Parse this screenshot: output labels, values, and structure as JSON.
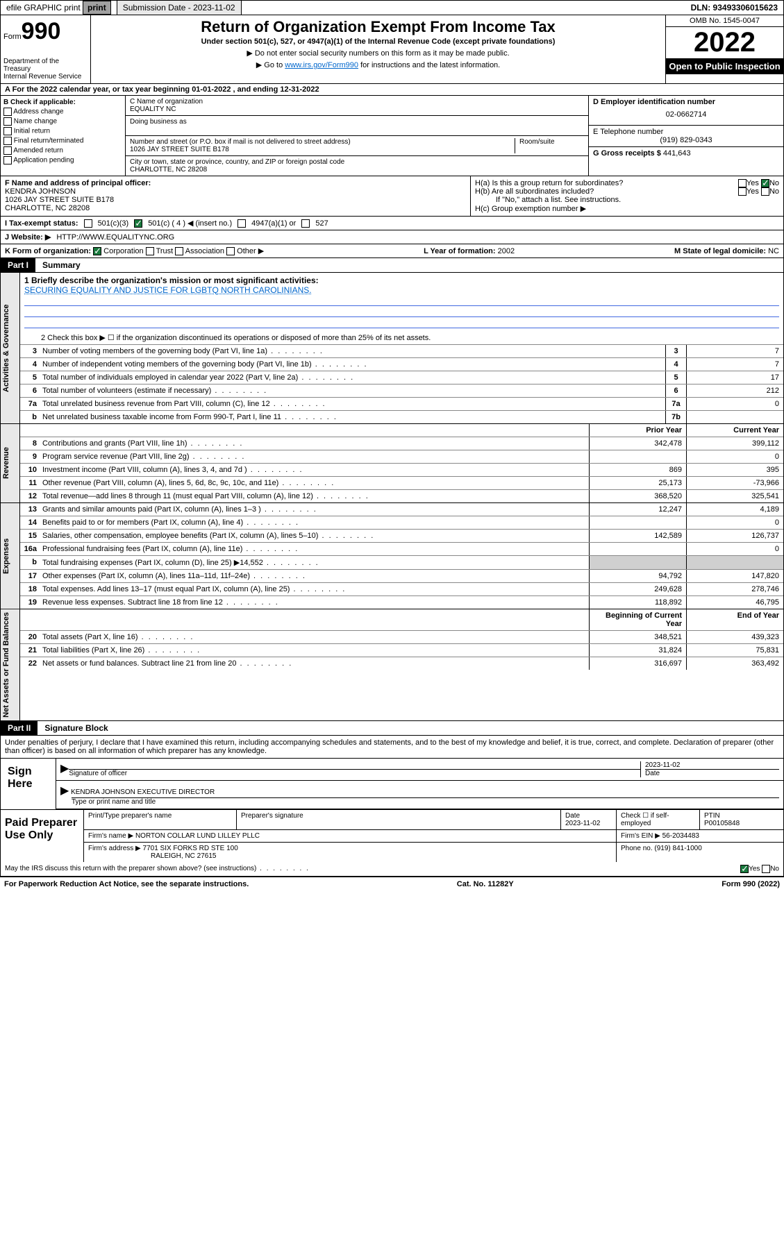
{
  "topbar": {
    "efile": "efile GRAPHIC print",
    "submission_label": "Submission Date - 2023-11-02",
    "dln": "DLN: 93493306015623"
  },
  "header": {
    "form_label": "Form",
    "form_num": "990",
    "main_title": "Return of Organization Exempt From Income Tax",
    "subtitle": "Under section 501(c), 527, or 4947(a)(1) of the Internal Revenue Code (except private foundations)",
    "note1": "▶ Do not enter social security numbers on this form as it may be made public.",
    "note2_pre": "▶ Go to ",
    "note2_link": "www.irs.gov/Form990",
    "note2_post": " for instructions and the latest information.",
    "dept": "Department of the Treasury\nInternal Revenue Service",
    "omb": "OMB No. 1545-0047",
    "year": "2022",
    "open_public": "Open to Public Inspection"
  },
  "section_a": "A For the 2022 calendar year, or tax year beginning 01-01-2022   , and ending 12-31-2022",
  "col_b": {
    "label": "B Check if applicable:",
    "opts": [
      "Address change",
      "Name change",
      "Initial return",
      "Final return/terminated",
      "Amended return",
      "Application pending"
    ]
  },
  "col_c": {
    "name_label": "C Name of organization",
    "name": "EQUALITY NC",
    "dba": "Doing business as",
    "addr_label": "Number and street (or P.O. box if mail is not delivered to street address)",
    "room": "Room/suite",
    "addr": "1026 JAY STREET SUITE B178",
    "city_label": "City or town, state or province, country, and ZIP or foreign postal code",
    "city": "CHARLOTTE, NC  28208"
  },
  "col_de": {
    "d_label": "D Employer identification number",
    "ein": "02-0662714",
    "e_label": "E Telephone number",
    "phone": "(919) 829-0343",
    "g_label": "G Gross receipts $",
    "gross": "441,643"
  },
  "row_f": {
    "label": "F  Name and address of principal officer:",
    "name": "KENDRA JOHNSON",
    "addr1": "1026 JAY STREET SUITE B178",
    "addr2": "CHARLOTTE, NC  28208"
  },
  "row_h": {
    "ha": "H(a)  Is this a group return for subordinates?",
    "hb": "H(b)  Are all subordinates included?",
    "hb_note": "If \"No,\" attach a list. See instructions.",
    "hc": "H(c)  Group exemption number ▶"
  },
  "row_i": {
    "label": "I  Tax-exempt status:",
    "opts": [
      "501(c)(3)",
      "501(c) ( 4 ) ◀ (insert no.)",
      "4947(a)(1) or",
      "527"
    ]
  },
  "row_j": {
    "label": "J  Website: ▶",
    "val": "HTTP://WWW.EQUALITYNC.ORG"
  },
  "row_k": {
    "label": "K Form of organization:",
    "opts": [
      "Corporation",
      "Trust",
      "Association",
      "Other ▶"
    ]
  },
  "row_l": {
    "label": "L Year of formation:",
    "val": "2002"
  },
  "row_m": {
    "label": "M State of legal domicile:",
    "val": "NC"
  },
  "parts": {
    "p1_label": "Part I",
    "p1_name": "Summary",
    "p2_label": "Part II",
    "p2_name": "Signature Block"
  },
  "vtabs": {
    "gov": "Activities & Governance",
    "rev": "Revenue",
    "exp": "Expenses",
    "net": "Net Assets or Fund Balances"
  },
  "mission_label": "1  Briefly describe the organization's mission or most significant activities:",
  "mission": "SECURING EQUALITY AND JUSTICE FOR LGBTQ NORTH CAROLINIANS.",
  "line2": "2 Check this box ▶ ☐  if the organization discontinued its operations or disposed of more than 25% of its net assets.",
  "gov_lines": [
    {
      "n": "3",
      "d": "Number of voting members of the governing body (Part VI, line 1a)",
      "box": "3",
      "v": "7"
    },
    {
      "n": "4",
      "d": "Number of independent voting members of the governing body (Part VI, line 1b)",
      "box": "4",
      "v": "7"
    },
    {
      "n": "5",
      "d": "Total number of individuals employed in calendar year 2022 (Part V, line 2a)",
      "box": "5",
      "v": "17"
    },
    {
      "n": "6",
      "d": "Total number of volunteers (estimate if necessary)",
      "box": "6",
      "v": "212"
    },
    {
      "n": "7a",
      "d": "Total unrelated business revenue from Part VIII, column (C), line 12",
      "box": "7a",
      "v": "0"
    },
    {
      "n": "b",
      "d": "Net unrelated business taxable income from Form 990-T, Part I, line 11",
      "box": "7b",
      "v": ""
    }
  ],
  "col_headers": {
    "prior": "Prior Year",
    "current": "Current Year",
    "beg": "Beginning of Current Year",
    "end": "End of Year"
  },
  "rev_lines": [
    {
      "n": "8",
      "d": "Contributions and grants (Part VIII, line 1h)",
      "p": "342,478",
      "c": "399,112"
    },
    {
      "n": "9",
      "d": "Program service revenue (Part VIII, line 2g)",
      "p": "",
      "c": "0"
    },
    {
      "n": "10",
      "d": "Investment income (Part VIII, column (A), lines 3, 4, and 7d )",
      "p": "869",
      "c": "395"
    },
    {
      "n": "11",
      "d": "Other revenue (Part VIII, column (A), lines 5, 6d, 8c, 9c, 10c, and 11e)",
      "p": "25,173",
      "c": "-73,966"
    },
    {
      "n": "12",
      "d": "Total revenue—add lines 8 through 11 (must equal Part VIII, column (A), line 12)",
      "p": "368,520",
      "c": "325,541"
    }
  ],
  "exp_lines": [
    {
      "n": "13",
      "d": "Grants and similar amounts paid (Part IX, column (A), lines 1–3 )",
      "p": "12,247",
      "c": "4,189"
    },
    {
      "n": "14",
      "d": "Benefits paid to or for members (Part IX, column (A), line 4)",
      "p": "",
      "c": "0"
    },
    {
      "n": "15",
      "d": "Salaries, other compensation, employee benefits (Part IX, column (A), lines 5–10)",
      "p": "142,589",
      "c": "126,737"
    },
    {
      "n": "16a",
      "d": "Professional fundraising fees (Part IX, column (A), line 11e)",
      "p": "",
      "c": "0"
    },
    {
      "n": "b",
      "d": "Total fundraising expenses (Part IX, column (D), line 25) ▶14,552",
      "p": "shaded",
      "c": "shaded"
    },
    {
      "n": "17",
      "d": "Other expenses (Part IX, column (A), lines 11a–11d, 11f–24e)",
      "p": "94,792",
      "c": "147,820"
    },
    {
      "n": "18",
      "d": "Total expenses. Add lines 13–17 (must equal Part IX, column (A), line 25)",
      "p": "249,628",
      "c": "278,746"
    },
    {
      "n": "19",
      "d": "Revenue less expenses. Subtract line 18 from line 12",
      "p": "118,892",
      "c": "46,795"
    }
  ],
  "net_lines": [
    {
      "n": "20",
      "d": "Total assets (Part X, line 16)",
      "p": "348,521",
      "c": "439,323"
    },
    {
      "n": "21",
      "d": "Total liabilities (Part X, line 26)",
      "p": "31,824",
      "c": "75,831"
    },
    {
      "n": "22",
      "d": "Net assets or fund balances. Subtract line 21 from line 20",
      "p": "316,697",
      "c": "363,492"
    }
  ],
  "sig": {
    "decl": "Under penalties of perjury, I declare that I have examined this return, including accompanying schedules and statements, and to the best of my knowledge and belief, it is true, correct, and complete. Declaration of preparer (other than officer) is based on all information of which preparer has any knowledge.",
    "sign_here": "Sign Here",
    "sig_label": "Signature of officer",
    "date_label": "Date",
    "date": "2023-11-02",
    "name": "KENDRA JOHNSON  EXECUTIVE DIRECTOR",
    "name_label": "Type or print name and title",
    "paid": "Paid Preparer Use Only",
    "prep_name_label": "Print/Type preparer's name",
    "prep_sig_label": "Preparer's signature",
    "prep_date_label": "Date",
    "prep_date": "2023-11-02",
    "check_label": "Check ☐ if self-employed",
    "ptin_label": "PTIN",
    "ptin": "P00105848",
    "firm_name_label": "Firm's name    ▶",
    "firm_name": "NORTON COLLAR LUND LILLEY PLLC",
    "firm_ein_label": "Firm's EIN ▶",
    "firm_ein": "56-2034483",
    "firm_addr_label": "Firm's address ▶",
    "firm_addr1": "7701 SIX FORKS RD STE 100",
    "firm_addr2": "RALEIGH, NC  27615",
    "phone_label": "Phone no.",
    "phone": "(919) 841-1000",
    "discuss": "May the IRS discuss this return with the preparer shown above? (see instructions)"
  },
  "footer": {
    "left": "For Paperwork Reduction Act Notice, see the separate instructions.",
    "center": "Cat. No. 11282Y",
    "right": "Form 990 (2022)"
  }
}
